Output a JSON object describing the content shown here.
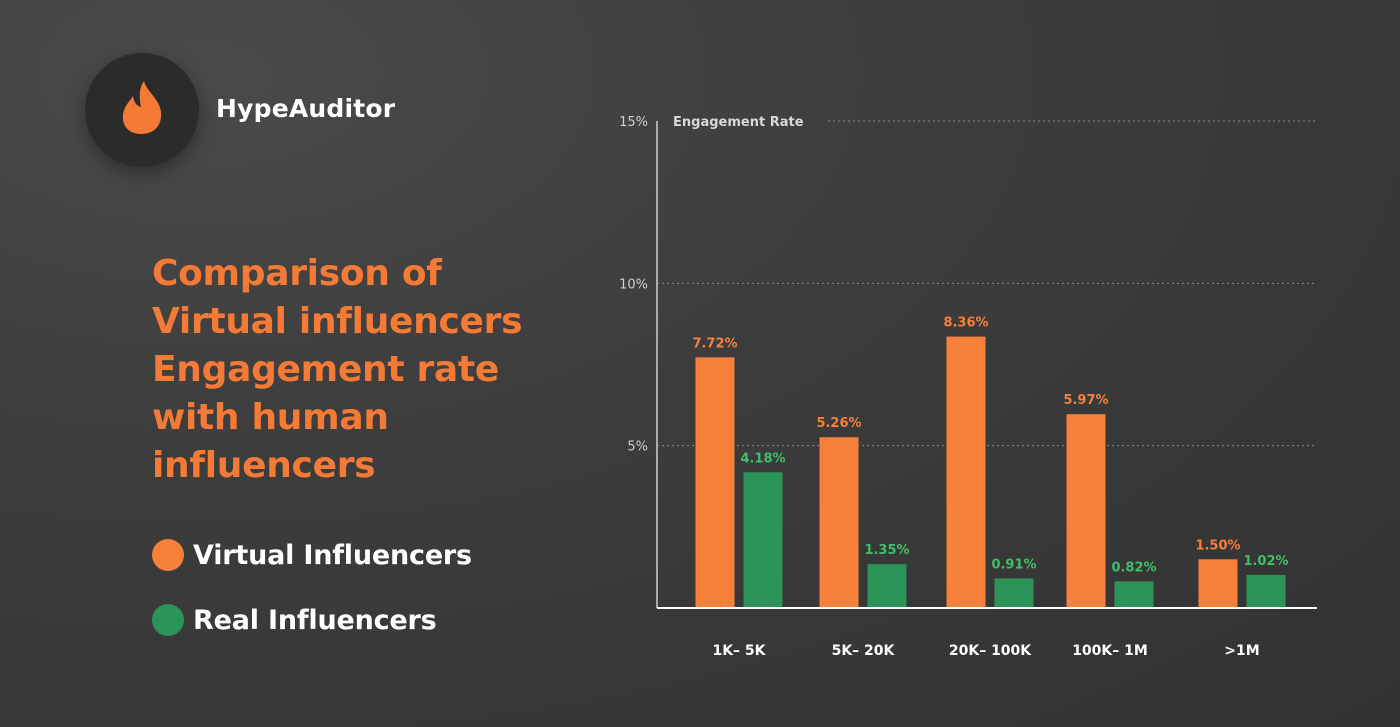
{
  "brand": {
    "name": "HypeAuditor",
    "logo_icon": "flame-icon"
  },
  "headline": "Comparison of Virtual influencers Engagement rate with human influencers",
  "legend": {
    "virtual": "Virtual Influencers",
    "real": "Real Influencers"
  },
  "colors": {
    "virtual": "#f7803b",
    "real": "#2c9458",
    "real_label": "#3fbf6a",
    "headline": "#f47a36"
  },
  "chart_data": {
    "type": "bar",
    "ylabel": "Engagement Rate",
    "ylim": [
      0,
      15
    ],
    "yticks": [
      5,
      10,
      15
    ],
    "ytick_labels": [
      "5%",
      "10%",
      "15%"
    ],
    "grid": true,
    "categories": [
      "1K– 5K",
      "5K– 20K",
      "20K– 100K",
      "100K– 1M",
      ">1M"
    ],
    "series": [
      {
        "name": "Virtual Influencers",
        "values": [
          7.72,
          5.26,
          8.36,
          5.97,
          1.5
        ],
        "labels": [
          "7.72%",
          "5.26%",
          "8.36%",
          "5.97%",
          "1.50%"
        ]
      },
      {
        "name": "Real Influencers",
        "values": [
          4.18,
          1.35,
          0.91,
          0.82,
          1.02
        ],
        "labels": [
          "4.18%",
          "1.35%",
          "0.91%",
          "0.82%",
          "1.02%"
        ]
      }
    ]
  }
}
